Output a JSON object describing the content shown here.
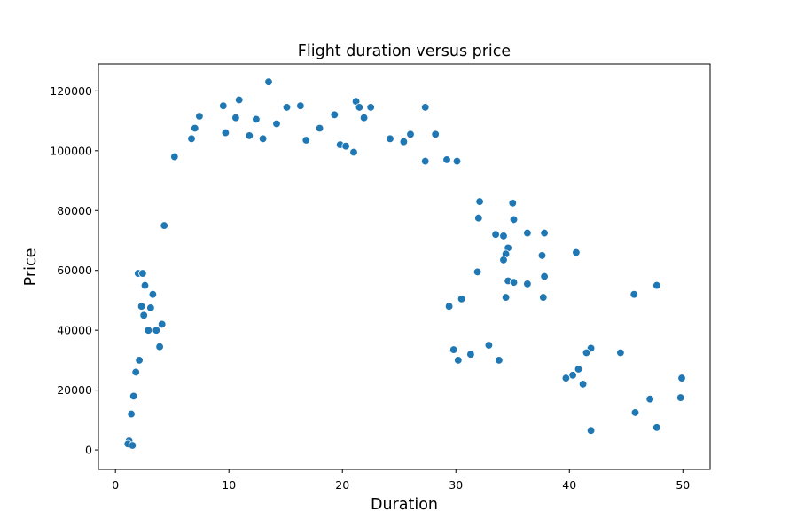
{
  "chart_data": {
    "type": "scatter",
    "title": "Flight duration versus price",
    "xlabel": "Duration",
    "ylabel": "Price",
    "xlim": [
      -1.5,
      52.4
    ],
    "ylim": [
      -6500,
      129000
    ],
    "x_ticks": [
      0,
      10,
      20,
      30,
      40,
      50
    ],
    "y_ticks": [
      0,
      20000,
      40000,
      60000,
      80000,
      100000,
      120000
    ],
    "x_tick_labels": [
      "0",
      "10",
      "20",
      "30",
      "40",
      "50"
    ],
    "y_tick_labels": [
      "0",
      "20000",
      "40000",
      "60000",
      "80000",
      "100000",
      "120000"
    ],
    "grid": false,
    "legend": "none",
    "colors": {
      "points": "#1f77b4",
      "point_edge": "#ffffff"
    },
    "series": [
      {
        "x": [
          13.5,
          10.9,
          21.2,
          21.5,
          19.3,
          22.5,
          21.9,
          27.3,
          15.1,
          16.3,
          18.0,
          12.4,
          10.6,
          9.5,
          14.2,
          7.4,
          7.0,
          9.7,
          11.8,
          13.0,
          16.8,
          19.8,
          24.2,
          25.4,
          26.0,
          28.2,
          20.3,
          21.0,
          6.7,
          5.2,
          27.3,
          29.2,
          30.1,
          32.1,
          32.0,
          35.0,
          35.1,
          33.5,
          34.2,
          34.6,
          36.3,
          37.8,
          37.6,
          34.4,
          34.2,
          36.3,
          34.6,
          37.8,
          40.6,
          37.7,
          35.1,
          34.4,
          31.9,
          30.5,
          29.4,
          44.5,
          45.7,
          47.7,
          49.9,
          49.8,
          45.8,
          47.1,
          47.7,
          41.9,
          41.5,
          40.8,
          40.3,
          39.7,
          41.2,
          41.9,
          32.9,
          33.8,
          30.2,
          29.8,
          31.3,
          2.0,
          2.4,
          2.6,
          2.3,
          2.5,
          3.3,
          3.1,
          1.6,
          1.4,
          1.8,
          1.2,
          1.1,
          1.5,
          2.1,
          2.9,
          3.6,
          3.9,
          4.1,
          4.3
        ],
        "y": [
          123000,
          117000,
          116500,
          114500,
          112000,
          114500,
          111000,
          114500,
          114500,
          115000,
          107500,
          110500,
          111000,
          115000,
          109000,
          111500,
          107500,
          106000,
          105000,
          104000,
          103500,
          102000,
          104000,
          103000,
          105500,
          105500,
          101500,
          99500,
          104000,
          98000,
          96500,
          97000,
          96500,
          83000,
          77500,
          82500,
          77000,
          72000,
          71500,
          67500,
          72500,
          72500,
          65000,
          65500,
          63500,
          55500,
          56500,
          58000,
          66000,
          51000,
          56000,
          51000,
          59500,
          50500,
          48000,
          32500,
          52000,
          55000,
          24000,
          17500,
          12500,
          17000,
          7500,
          34000,
          32500,
          27000,
          25000,
          24000,
          22000,
          6500,
          35000,
          30000,
          30000,
          33500,
          32000,
          59000,
          59000,
          55000,
          48000,
          45000,
          52000,
          47500,
          18000,
          12000,
          26000,
          3000,
          2000,
          1500,
          30000,
          40000,
          40000,
          34500,
          42000,
          75000
        ]
      }
    ]
  }
}
